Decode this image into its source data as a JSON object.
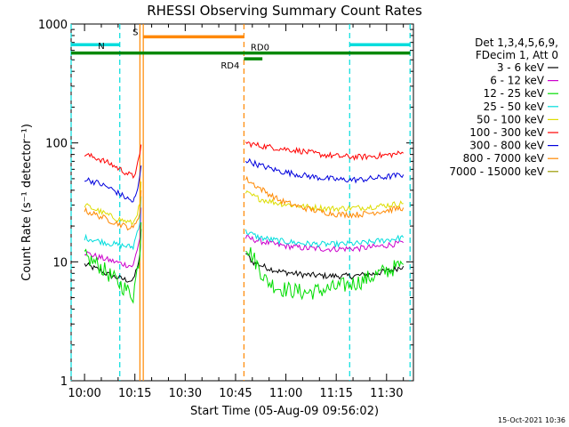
{
  "chart_data": {
    "type": "line",
    "title": "RHESSI Observing Summary Count Rates",
    "xlabel": "Start Time (05-Aug-09 09:56:02)",
    "ylabel": "Count Rate (s⁻¹ detector⁻¹)",
    "yscale": "log",
    "ylim": [
      1,
      1000
    ],
    "xlim_min": [
      -4,
      98
    ],
    "x_tick_labels": [
      "10:00",
      "10:15",
      "10:30",
      "10:45",
      "11:00",
      "11:15",
      "11:30"
    ],
    "x_tick_min": [
      0,
      15,
      30,
      45,
      60,
      75,
      90
    ],
    "y_tick_labels": [
      "1",
      "10",
      "100",
      "1000"
    ],
    "y_tick_values": [
      1,
      10,
      100,
      1000
    ],
    "legend": {
      "placement": "top-right",
      "header": [
        "Det 1,3,4,5,6,9,",
        "FDecim 1, Att 0"
      ]
    },
    "gaps_min": [
      [
        14.8,
        47.5
      ]
    ],
    "series": [
      {
        "name": "3 - 6 keV",
        "color": "#000000",
        "points": [
          [
            0,
            9.5
          ],
          [
            4,
            8.6
          ],
          [
            8,
            7.6
          ],
          [
            12,
            7.1
          ],
          [
            14.5,
            6.9
          ],
          [
            16.5,
            11
          ],
          [
            17.2,
            30
          ],
          [
            48,
            12
          ],
          [
            50,
            10
          ],
          [
            54,
            9
          ],
          [
            58,
            8.3
          ],
          [
            65,
            7.8
          ],
          [
            72,
            7.6
          ],
          [
            80,
            7.6
          ],
          [
            86,
            7.9
          ],
          [
            92,
            8.6
          ],
          [
            95,
            9.2
          ]
        ]
      },
      {
        "name": "6 - 12 keV",
        "color": "#cc00cc",
        "points": [
          [
            0,
            12
          ],
          [
            4,
            11
          ],
          [
            8,
            10.2
          ],
          [
            12,
            9.5
          ],
          [
            14.5,
            9.2
          ],
          [
            16.5,
            16
          ],
          [
            17.2,
            50
          ],
          [
            48,
            16
          ],
          [
            52,
            15
          ],
          [
            58,
            13.8
          ],
          [
            66,
            13
          ],
          [
            74,
            12.8
          ],
          [
            82,
            13
          ],
          [
            88,
            13.5
          ],
          [
            95,
            14.5
          ]
        ]
      },
      {
        "name": "12 - 25 keV",
        "color": "#00dd00",
        "points": [
          [
            0,
            11
          ],
          [
            4,
            9.5
          ],
          [
            8,
            7.5
          ],
          [
            12,
            6
          ],
          [
            14.5,
            5.2
          ],
          [
            16.5,
            12
          ],
          [
            17.2,
            45
          ],
          [
            48,
            14
          ],
          [
            51,
            10
          ],
          [
            54,
            7
          ],
          [
            58,
            6
          ],
          [
            66,
            5.5
          ],
          [
            74,
            6
          ],
          [
            82,
            6.8
          ],
          [
            88,
            8
          ],
          [
            95,
            9.5
          ]
        ]
      },
      {
        "name": "25 - 50 keV",
        "color": "#00dddd",
        "points": [
          [
            0,
            16
          ],
          [
            4,
            15
          ],
          [
            8,
            14.2
          ],
          [
            12,
            13.6
          ],
          [
            14.5,
            13.3
          ],
          [
            16.5,
            22
          ],
          [
            17.2,
            60
          ],
          [
            48,
            18
          ],
          [
            52,
            16
          ],
          [
            58,
            15
          ],
          [
            66,
            14.2
          ],
          [
            74,
            14
          ],
          [
            82,
            14.3
          ],
          [
            88,
            15
          ],
          [
            95,
            16
          ]
        ]
      },
      {
        "name": "50 - 100 keV",
        "color": "#dddd00",
        "points": [
          [
            0,
            30
          ],
          [
            4,
            27
          ],
          [
            8,
            24
          ],
          [
            12,
            22
          ],
          [
            14.5,
            21
          ],
          [
            16.5,
            30
          ],
          [
            17.2,
            70
          ],
          [
            48,
            38
          ],
          [
            52,
            34
          ],
          [
            58,
            31
          ],
          [
            66,
            29
          ],
          [
            74,
            28
          ],
          [
            82,
            28.5
          ],
          [
            88,
            29.5
          ],
          [
            95,
            31
          ]
        ]
      },
      {
        "name": "100 - 300 keV",
        "color": "#ff0000",
        "points": [
          [
            0,
            80
          ],
          [
            4,
            74
          ],
          [
            8,
            66
          ],
          [
            12,
            57
          ],
          [
            14.5,
            52
          ],
          [
            15.5,
            60
          ],
          [
            16.5,
            80
          ],
          [
            17.2,
            125
          ],
          [
            48,
            100
          ],
          [
            52,
            95
          ],
          [
            58,
            90
          ],
          [
            64,
            86
          ],
          [
            70,
            80
          ],
          [
            76,
            77
          ],
          [
            82,
            76
          ],
          [
            88,
            78
          ],
          [
            95,
            82
          ]
        ]
      },
      {
        "name": "300 - 800 keV",
        "color": "#0000dd",
        "points": [
          [
            0,
            50
          ],
          [
            4,
            46
          ],
          [
            8,
            41
          ],
          [
            12,
            35
          ],
          [
            14.5,
            32
          ],
          [
            15.5,
            37
          ],
          [
            16.5,
            52
          ],
          [
            17.2,
            85
          ],
          [
            48,
            72
          ],
          [
            52,
            65
          ],
          [
            58,
            58
          ],
          [
            64,
            54
          ],
          [
            70,
            51
          ],
          [
            76,
            49
          ],
          [
            82,
            49
          ],
          [
            88,
            51
          ],
          [
            95,
            54
          ]
        ]
      },
      {
        "name": "800 - 7000 keV",
        "color": "#ff8800",
        "points": [
          [
            0,
            27
          ],
          [
            4,
            24.5
          ],
          [
            8,
            22
          ],
          [
            12,
            20
          ],
          [
            14.5,
            19
          ],
          [
            16.5,
            26
          ],
          [
            17.2,
            60
          ],
          [
            48,
            50
          ],
          [
            52,
            42
          ],
          [
            58,
            33
          ],
          [
            64,
            29
          ],
          [
            70,
            26.5
          ],
          [
            76,
            25
          ],
          [
            82,
            25
          ],
          [
            88,
            26.5
          ],
          [
            95,
            28.5
          ]
        ]
      },
      {
        "name": "7000 - 15000 keV",
        "color": "#999900",
        "points": []
      }
    ],
    "vertical_markers": [
      {
        "label": "N",
        "color": "#00dddd",
        "style": "dashed",
        "x_min": [
          -4,
          10.5
        ]
      },
      {
        "label": "",
        "color": "#00dddd",
        "style": "dashed",
        "x_min": [
          79,
          97
        ]
      },
      {
        "label": "S",
        "color": "#ff8800",
        "style": "solid",
        "x_min": [
          16.5,
          17.5
        ]
      },
      {
        "label": "",
        "color": "#ff8800",
        "style": "dashed",
        "x_min": [
          47.5
        ]
      }
    ],
    "state_bars": [
      {
        "label": "N",
        "color": "#00dddd",
        "level": 670,
        "x_min": [
          -4,
          10.5
        ]
      },
      {
        "label": "",
        "color": "#00dddd",
        "level": 670,
        "x_min": [
          79,
          97
        ]
      },
      {
        "label": "S",
        "color": "#ff8800",
        "level": 780,
        "x_min": [
          17.5,
          47.5
        ]
      },
      {
        "label": "RD0",
        "color": "#008800",
        "level": 570,
        "x_min": [
          -4,
          97
        ]
      },
      {
        "label": "RD4",
        "color": "#008800",
        "level": 510,
        "x_min": [
          47.5,
          53
        ]
      }
    ],
    "footer": "15-Oct-2021 10:36"
  }
}
